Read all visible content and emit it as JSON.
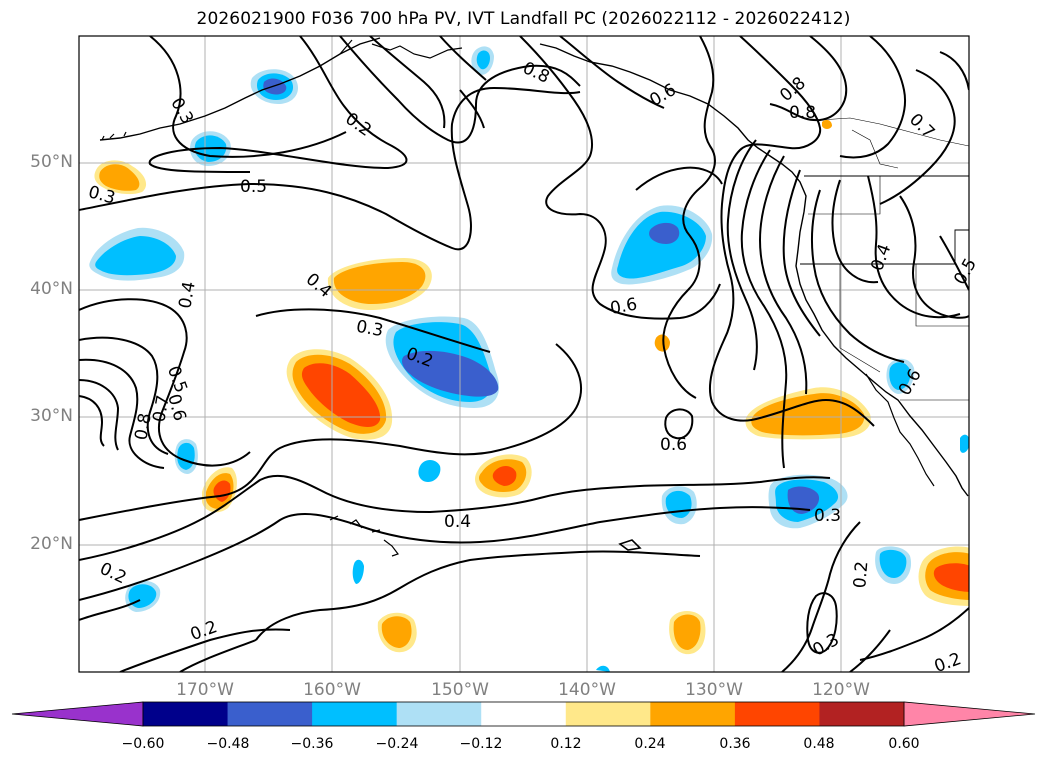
{
  "title": "2026021900 F036 700 hPa PV, IVT Landfall PC (2026022112 - 2026022412)",
  "lat_labels": [
    "50°N",
    "40°N",
    "30°N",
    "20°N"
  ],
  "lon_labels": [
    "170°W",
    "160°W",
    "150°W",
    "140°W",
    "130°W",
    "120°W"
  ],
  "colorbar": {
    "ticks": [
      "−0.60",
      "−0.48",
      "−0.36",
      "−0.24",
      "−0.12",
      "0.12",
      "0.24",
      "0.36",
      "0.48",
      "0.60"
    ],
    "colors": [
      "#9932cc",
      "#00008b",
      "#3a5fcd",
      "#00bfff",
      "#aee0f5",
      "#ffffff",
      "#ffe88a",
      "#ffa500",
      "#ff4500",
      "#b22222",
      "#ff85a8"
    ]
  },
  "contour_labels": [
    "0.3",
    "0.2",
    "0.8",
    "0.6",
    "0.8",
    "0.8",
    "0.7",
    "0.3",
    "0.5",
    "0.4",
    "0.4",
    "0.3",
    "0.2",
    "0.6",
    "0.4",
    "0.5",
    "0.6",
    "0.7",
    "0.8",
    "0.6",
    "0.4",
    "0.3",
    "0.2",
    "0.2",
    "0.2",
    "0.3",
    "0.2",
    "0.6",
    "0.5"
  ],
  "map_extent": {
    "lon": [
      -180,
      -110
    ],
    "lat": [
      10,
      60
    ]
  }
}
